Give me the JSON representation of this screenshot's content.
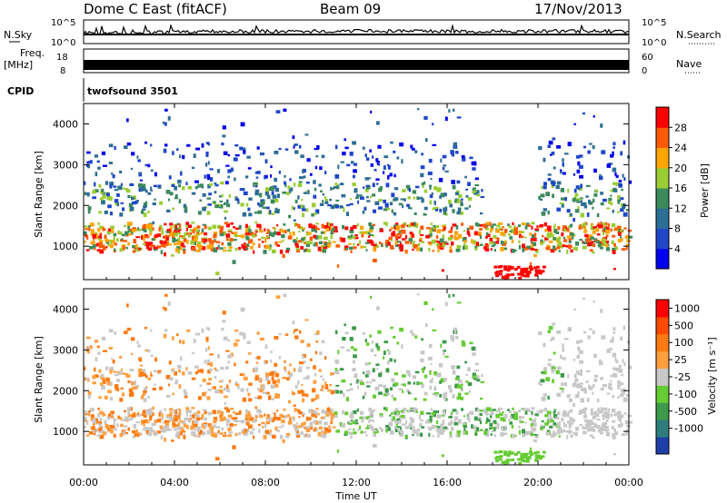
{
  "header": {
    "station": "Dome C East (fitACF)",
    "beam": "Beam 09",
    "date": "17/Nov/2013"
  },
  "chart_data": [
    {
      "type": "line",
      "panel": "noise",
      "left_label": "N.Sky",
      "right_label": "N.Search",
      "left_ticks": [
        "10^5",
        "10^0"
      ],
      "right_ticks": [
        "10^5",
        "10^0"
      ]
    },
    {
      "type": "line",
      "panel": "frequency",
      "left_label_line1": "Freq.",
      "left_label_line2": "[MHz]",
      "right_label": "Nave",
      "left_ticks": [
        "18",
        "8"
      ],
      "right_ticks": [
        "60",
        "0"
      ]
    },
    {
      "type": "table",
      "panel": "cpid",
      "label": "CPID",
      "value": "twofsound 3501"
    },
    {
      "type": "heatmap",
      "panel": "power",
      "ylabel": "Slant Range [km]",
      "ylim": [
        180,
        4500
      ],
      "yticks": [
        "4000",
        "3000",
        "2000",
        "1000"
      ],
      "colorbar_label": "Power [dB]",
      "colorbar_ticks": [
        "28",
        "24",
        "20",
        "16",
        "12",
        "8",
        "4"
      ],
      "colorbar_colors": [
        "#0000ee",
        "#1f47c8",
        "#2d6e95",
        "#3c8a5c",
        "#9acd32",
        "#ffa500",
        "#ff5a00",
        "#ff0000"
      ],
      "dominant_bands": [
        {
          "range_km": [
            900,
            1600
          ],
          "level_db": "12-28"
        },
        {
          "range_km": [
            1800,
            2600
          ],
          "level_db": "4-20"
        },
        {
          "range_km": [
            2600,
            3600
          ],
          "level_db": "4-12"
        }
      ]
    },
    {
      "type": "heatmap",
      "panel": "velocity",
      "ylabel": "Slant Range [km]",
      "ylim": [
        180,
        4500
      ],
      "yticks": [
        "4000",
        "3000",
        "2000",
        "1000"
      ],
      "colorbar_label": "Velocity [m s⁻¹]",
      "colorbar_ticks": [
        "1000",
        "500",
        "100",
        "25",
        "-25",
        "-100",
        "-500",
        "-1000"
      ],
      "colorbar_colors": [
        "#1f3fa8",
        "#2e7d7d",
        "#3c9a4a",
        "#66cc33",
        "#c8c8c8",
        "#ffa040",
        "#ff7a10",
        "#ff4a00",
        "#ff0000"
      ]
    }
  ],
  "xaxis": {
    "label": "Time UT",
    "ticks": [
      "00:00",
      "04:00",
      "08:00",
      "12:00",
      "16:00",
      "20:00",
      "00:00"
    ]
  }
}
